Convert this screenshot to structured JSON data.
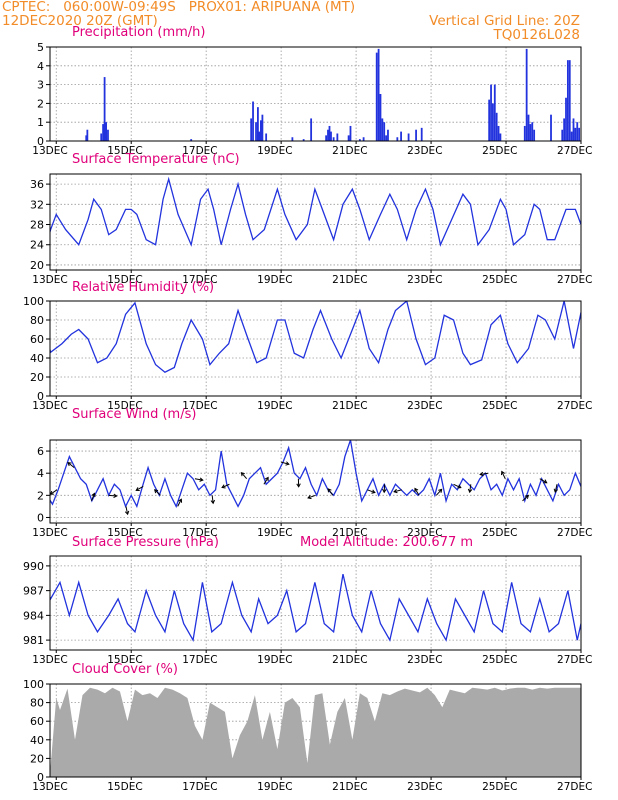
{
  "header": {
    "line1_left": "CPTEC:   060:00W-09:49S   PROX01: ARIPUANA (MT)",
    "line2_left": "12DEC2020 20Z (GMT)",
    "line2_right": "Vertical Grid Line: 20Z",
    "line3_right": "TQ0126L028",
    "color": "#f28c28"
  },
  "colors": {
    "title": "#e0007a",
    "line": "#2233dd",
    "cloud": "#aaaaaa",
    "grid": "#999999",
    "axis": "#000000"
  },
  "x_axis": {
    "start_day": 12.8333,
    "end_day": 27.0,
    "tick_days": [
      13,
      15,
      17,
      19,
      21,
      23,
      25,
      27
    ],
    "tick_labels": [
      "13DEC",
      "15DEC",
      "17DEC",
      "19DEC",
      "21DEC",
      "23DEC",
      "25DEC",
      "27DEC"
    ],
    "label_offset_day": -0.1667
  },
  "chart_data": [
    {
      "id": "precip",
      "type": "bar",
      "title": "Precipitation  (mm/h)",
      "ylim": [
        0,
        5
      ],
      "yticks": [
        0,
        1,
        2,
        3,
        4,
        5
      ],
      "x_days": [
        12.33,
        12.38,
        12.42,
        12.46,
        12.5,
        12.54,
        13.8,
        13.83,
        14.2,
        14.25,
        14.29,
        14.33,
        14.38,
        16.6,
        18.2,
        18.25,
        18.33,
        18.38,
        18.42,
        18.46,
        18.5,
        18.6,
        19.3,
        19.6,
        19.8,
        20.2,
        20.25,
        20.29,
        20.33,
        20.4,
        20.5,
        20.8,
        20.85,
        21.1,
        21.2,
        21.55,
        21.6,
        21.65,
        21.7,
        21.75,
        21.8,
        21.85,
        22.1,
        22.2,
        22.4,
        22.6,
        22.75,
        24.55,
        24.6,
        24.65,
        24.7,
        24.75,
        24.8,
        24.85,
        25.5,
        25.55,
        25.6,
        25.65,
        25.7,
        25.75,
        26.2,
        26.5,
        26.55,
        26.6,
        26.65,
        26.7,
        26.75,
        26.8,
        26.85,
        26.9,
        26.95
      ],
      "values": [
        1.3,
        0.6,
        0.9,
        0.7,
        0.6,
        0.2,
        0.3,
        0.6,
        0.4,
        0.9,
        3.4,
        1.0,
        0.6,
        0.1,
        1.2,
        2.1,
        1.0,
        1.8,
        0.5,
        1.1,
        1.4,
        0.4,
        0.2,
        0.1,
        1.2,
        0.3,
        0.6,
        0.8,
        0.5,
        0.2,
        0.4,
        0.3,
        0.8,
        0.1,
        0.2,
        4.7,
        4.9,
        2.5,
        1.2,
        1.0,
        0.3,
        0.6,
        0.2,
        0.5,
        0.4,
        0.6,
        0.7,
        2.2,
        3.0,
        2.0,
        3.0,
        1.5,
        0.8,
        0.4,
        0.8,
        4.9,
        1.4,
        0.9,
        1.0,
        0.6,
        1.4,
        0.6,
        1.2,
        2.3,
        4.3,
        4.3,
        0.5,
        1.2,
        0.7,
        1.0,
        0.7
      ]
    },
    {
      "id": "temp",
      "type": "line",
      "title": "Surface Temperature (nC)",
      "ylim": [
        19,
        38
      ],
      "yticks": [
        20,
        24,
        28,
        32,
        36
      ],
      "x_days": [
        12.0,
        12.35,
        12.6,
        12.85,
        13.0,
        13.25,
        13.6,
        13.85,
        14.0,
        14.2,
        14.4,
        14.6,
        14.85,
        15.0,
        15.15,
        15.4,
        15.65,
        15.85,
        16.0,
        16.25,
        16.6,
        16.85,
        17.05,
        17.2,
        17.4,
        17.65,
        17.85,
        18.05,
        18.25,
        18.55,
        18.9,
        19.1,
        19.4,
        19.7,
        19.9,
        20.1,
        20.4,
        20.65,
        20.9,
        21.1,
        21.35,
        21.65,
        21.9,
        22.1,
        22.35,
        22.6,
        22.85,
        23.05,
        23.25,
        23.55,
        23.85,
        24.05,
        24.25,
        24.55,
        24.85,
        25.0,
        25.2,
        25.5,
        25.75,
        25.9,
        26.1,
        26.3,
        26.6,
        26.85,
        27.0
      ],
      "values": [
        21,
        20,
        20.5,
        27,
        30,
        27,
        24,
        29,
        33,
        31,
        26,
        27,
        31,
        31,
        30,
        25,
        24,
        33,
        37,
        30,
        24,
        33,
        35,
        31,
        24,
        31,
        36,
        30,
        25,
        27,
        35,
        30,
        25,
        28,
        35,
        31,
        25,
        32,
        35,
        31,
        25,
        30,
        34,
        31,
        25,
        31,
        35,
        31,
        24,
        29,
        34,
        32,
        24,
        27,
        33,
        31,
        24,
        26,
        32,
        31,
        25,
        25,
        31,
        31,
        28
      ]
    },
    {
      "id": "rh",
      "type": "line",
      "title": "Relative Humidity  (%)",
      "ylim": [
        0,
        100
      ],
      "yticks": [
        0,
        20,
        40,
        60,
        80,
        100
      ],
      "x_days": [
        12.0,
        12.2,
        12.4,
        12.6,
        12.85,
        13.15,
        13.4,
        13.6,
        13.85,
        14.1,
        14.35,
        14.6,
        14.85,
        15.1,
        15.4,
        15.65,
        15.9,
        16.15,
        16.35,
        16.6,
        16.9,
        17.1,
        17.35,
        17.6,
        17.85,
        18.1,
        18.35,
        18.6,
        18.9,
        19.1,
        19.35,
        19.6,
        19.85,
        20.05,
        20.35,
        20.6,
        20.85,
        21.1,
        21.35,
        21.6,
        21.85,
        22.05,
        22.35,
        22.6,
        22.85,
        23.1,
        23.35,
        23.6,
        23.85,
        24.05,
        24.35,
        24.6,
        24.85,
        25.05,
        25.3,
        25.6,
        25.85,
        26.05,
        26.3,
        26.55,
        26.8,
        27.0
      ],
      "values": [
        100,
        100,
        88,
        85,
        46,
        55,
        65,
        70,
        60,
        35,
        40,
        55,
        86,
        98,
        55,
        33,
        25,
        30,
        55,
        80,
        60,
        33,
        45,
        55,
        90,
        62,
        35,
        40,
        80,
        80,
        45,
        40,
        70,
        90,
        60,
        40,
        65,
        90,
        50,
        35,
        70,
        90,
        100,
        60,
        33,
        40,
        85,
        80,
        45,
        33,
        38,
        75,
        85,
        55,
        35,
        50,
        85,
        80,
        60,
        100,
        50,
        88
      ]
    },
    {
      "id": "wind",
      "type": "line",
      "title": "Surface Wind  (m/s)",
      "ylim": [
        -0.5,
        7
      ],
      "yticks": [
        0,
        2,
        4,
        6
      ],
      "x_days": [
        12.0,
        12.15,
        12.3,
        12.45,
        12.6,
        12.75,
        12.9,
        13.05,
        13.2,
        13.35,
        13.5,
        13.65,
        13.8,
        13.95,
        14.1,
        14.25,
        14.4,
        14.55,
        14.7,
        14.85,
        15.0,
        15.15,
        15.3,
        15.45,
        15.6,
        15.75,
        15.9,
        16.05,
        16.2,
        16.35,
        16.5,
        16.65,
        16.8,
        16.95,
        17.1,
        17.25,
        17.4,
        17.55,
        17.7,
        17.85,
        18.0,
        18.15,
        18.3,
        18.45,
        18.6,
        18.75,
        18.9,
        19.05,
        19.2,
        19.35,
        19.5,
        19.65,
        19.8,
        19.95,
        20.1,
        20.25,
        20.4,
        20.55,
        20.7,
        20.85,
        21.0,
        21.15,
        21.3,
        21.45,
        21.6,
        21.75,
        21.9,
        22.05,
        22.2,
        22.35,
        22.5,
        22.65,
        22.8,
        22.95,
        23.1,
        23.25,
        23.4,
        23.55,
        23.7,
        23.85,
        24.0,
        24.15,
        24.3,
        24.45,
        24.6,
        24.75,
        24.9,
        25.05,
        25.2,
        25.35,
        25.5,
        25.65,
        25.8,
        25.95,
        26.1,
        26.25,
        26.4,
        26.55,
        26.7,
        26.85,
        27.0
      ],
      "values": [
        1.8,
        2.5,
        1.5,
        3.5,
        3.2,
        2.0,
        1.2,
        2.5,
        4.0,
        5.5,
        4.5,
        3.5,
        3.0,
        1.5,
        2.5,
        3.5,
        2.0,
        3.0,
        2.5,
        1.0,
        2.0,
        1.0,
        2.8,
        4.5,
        3.0,
        2.0,
        3.5,
        2.0,
        1.0,
        2.5,
        4.0,
        3.5,
        2.5,
        3.0,
        2.0,
        2.5,
        6.0,
        3.0,
        2.0,
        1.0,
        2.0,
        3.5,
        4.0,
        4.5,
        3.0,
        3.5,
        4.0,
        5.0,
        6.3,
        4.0,
        3.5,
        4.5,
        3.0,
        2.0,
        3.5,
        2.5,
        2.0,
        3.0,
        5.5,
        7.0,
        4.0,
        1.5,
        2.5,
        3.5,
        2.0,
        3.0,
        2.0,
        3.0,
        2.5,
        2.0,
        2.5,
        2.0,
        2.5,
        3.5,
        2.0,
        4.0,
        1.5,
        3.0,
        2.5,
        3.5,
        3.0,
        2.5,
        3.5,
        4.0,
        2.5,
        3.0,
        2.0,
        3.5,
        2.5,
        3.5,
        1.5,
        3.0,
        2.0,
        3.5,
        2.5,
        1.5,
        3.0,
        2.0,
        2.5,
        4.0,
        2.8
      ]
    },
    {
      "id": "pressure",
      "type": "line",
      "title": "Surface Pressure (hPa)",
      "subtitle": "Model Altitude: 200.677  m",
      "ylim": [
        979.8,
        991.2
      ],
      "yticks": [
        981,
        984,
        987,
        990
      ],
      "x_days": [
        12.0,
        12.3,
        12.55,
        12.85,
        13.1,
        13.35,
        13.6,
        13.85,
        14.1,
        14.4,
        14.65,
        14.9,
        15.1,
        15.4,
        15.65,
        15.9,
        16.15,
        16.4,
        16.65,
        16.9,
        17.15,
        17.4,
        17.7,
        17.95,
        18.2,
        18.4,
        18.65,
        18.9,
        19.15,
        19.4,
        19.65,
        19.9,
        20.15,
        20.4,
        20.65,
        20.9,
        21.15,
        21.4,
        21.65,
        21.9,
        22.15,
        22.4,
        22.65,
        22.9,
        23.15,
        23.4,
        23.65,
        23.9,
        24.15,
        24.4,
        24.65,
        24.9,
        25.15,
        25.4,
        25.65,
        25.9,
        26.15,
        26.4,
        26.65,
        26.9,
        27.0
      ],
      "values": [
        989,
        990.5,
        989,
        986,
        988,
        984,
        988,
        984,
        982,
        984,
        986,
        983,
        982,
        987,
        984,
        982,
        987,
        983,
        981,
        988,
        982,
        983,
        988,
        984,
        982,
        986,
        983,
        984,
        987,
        982,
        983,
        988,
        983,
        982,
        989,
        984,
        982,
        987,
        983,
        981,
        986,
        984,
        982,
        986,
        983,
        981,
        986,
        984,
        982,
        987,
        983,
        982,
        988,
        983,
        982,
        986,
        982,
        983,
        987,
        981,
        983
      ]
    },
    {
      "id": "cloud",
      "type": "area",
      "title": "Cloud Cover  (%)",
      "ylim": [
        0,
        100
      ],
      "yticks": [
        0,
        20,
        40,
        60,
        80,
        100
      ],
      "x_days": [
        12.0,
        12.3,
        12.5,
        12.7,
        12.85,
        13.0,
        13.1,
        13.3,
        13.5,
        13.7,
        13.9,
        14.1,
        14.3,
        14.5,
        14.7,
        14.9,
        15.1,
        15.3,
        15.5,
        15.7,
        15.9,
        16.1,
        16.3,
        16.5,
        16.7,
        16.9,
        17.1,
        17.3,
        17.5,
        17.7,
        17.9,
        18.1,
        18.3,
        18.5,
        18.7,
        18.9,
        19.1,
        19.3,
        19.5,
        19.7,
        19.9,
        20.1,
        20.3,
        20.5,
        20.7,
        20.9,
        21.1,
        21.3,
        21.5,
        21.7,
        21.9,
        22.1,
        22.3,
        22.5,
        22.7,
        22.9,
        23.1,
        23.3,
        23.5,
        23.7,
        23.9,
        24.1,
        24.3,
        24.5,
        24.7,
        24.9,
        25.1,
        25.3,
        25.5,
        25.7,
        25.9,
        26.1,
        26.3,
        26.5,
        26.7,
        26.9,
        27.0
      ],
      "values": [
        95,
        96,
        92,
        70,
        12,
        85,
        72,
        95,
        40,
        88,
        96,
        94,
        90,
        96,
        92,
        60,
        94,
        88,
        90,
        85,
        96,
        94,
        90,
        85,
        55,
        40,
        80,
        75,
        70,
        20,
        45,
        60,
        88,
        40,
        70,
        30,
        80,
        85,
        75,
        15,
        88,
        90,
        35,
        70,
        85,
        40,
        90,
        85,
        60,
        90,
        88,
        92,
        95,
        93,
        91,
        96,
        88,
        75,
        94,
        92,
        90,
        96,
        95,
        94,
        96,
        93,
        95,
        96,
        96,
        94,
        96,
        95,
        96,
        96,
        96,
        96,
        96
      ]
    }
  ]
}
